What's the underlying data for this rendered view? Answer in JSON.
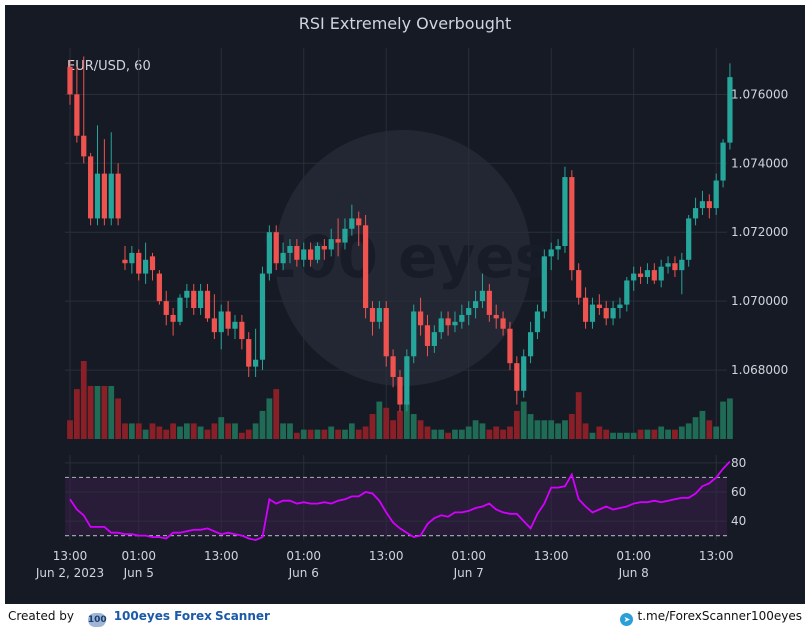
{
  "chart_data": [
    {
      "type": "candlestick",
      "title": "RSI Extremely Overbought",
      "symbol_label": "EUR/USD, 60",
      "ylim": [
        1.066,
        1.0772
      ],
      "y_ticks": [
        "1.068000",
        "1.070000",
        "1.072000",
        "1.074000",
        "1.076000"
      ],
      "y_tick_values": [
        1.068,
        1.07,
        1.072,
        1.074,
        1.076
      ],
      "x_ticks": [
        {
          "top": "13:00",
          "bottom": "Jun 2, 2023",
          "bar": 0
        },
        {
          "top": "01:00",
          "bottom": "Jun 5",
          "bar": 10
        },
        {
          "top": "13:00",
          "bottom": "",
          "bar": 22
        },
        {
          "top": "01:00",
          "bottom": "Jun 6",
          "bar": 34
        },
        {
          "top": "13:00",
          "bottom": "",
          "bar": 46
        },
        {
          "top": "01:00",
          "bottom": "Jun 7",
          "bar": 58
        },
        {
          "top": "13:00",
          "bottom": "",
          "bar": 70
        },
        {
          "top": "01:00",
          "bottom": "Jun 8",
          "bar": 82
        },
        {
          "top": "13:00",
          "bottom": "",
          "bar": 94
        }
      ],
      "bars": 97,
      "ohlc": [
        [
          1.0768,
          1.077,
          1.0757,
          1.076
        ],
        [
          1.076,
          1.0768,
          1.0746,
          1.0748
        ],
        [
          1.0748,
          1.0771,
          1.074,
          1.0742
        ],
        [
          1.0742,
          1.0743,
          1.0722,
          1.0724
        ],
        [
          1.0724,
          1.0751,
          1.0722,
          1.0737
        ],
        [
          1.0737,
          1.0747,
          1.0722,
          1.0724
        ],
        [
          1.0724,
          1.0749,
          1.0722,
          1.0737
        ],
        [
          1.0737,
          1.074,
          1.0722,
          1.0724
        ],
        [
          1.0712,
          1.0716,
          1.0709,
          1.0711
        ],
        [
          1.0711,
          1.0716,
          1.0708,
          1.0714
        ],
        [
          1.0714,
          1.0715,
          1.0706,
          1.0708
        ],
        [
          1.0708,
          1.0717,
          1.0705,
          1.0712
        ],
        [
          1.0713,
          1.0714,
          1.0706,
          1.0709
        ],
        [
          1.0708,
          1.0709,
          1.0699,
          1.07
        ],
        [
          1.07,
          1.0703,
          1.0693,
          1.0696
        ],
        [
          1.0696,
          1.0698,
          1.069,
          1.0694
        ],
        [
          1.0694,
          1.0702,
          1.0693,
          1.0701
        ],
        [
          1.0701,
          1.0705,
          1.0698,
          1.0703
        ],
        [
          1.0703,
          1.0705,
          1.0696,
          1.0698
        ],
        [
          1.0698,
          1.0705,
          1.0696,
          1.0703
        ],
        [
          1.0703,
          1.0705,
          1.0694,
          1.0695
        ],
        [
          1.0695,
          1.0702,
          1.0689,
          1.0691
        ],
        [
          1.0691,
          1.0699,
          1.0686,
          1.0697
        ],
        [
          1.0697,
          1.07,
          1.069,
          1.0692
        ],
        [
          1.0692,
          1.0696,
          1.0689,
          1.0694
        ],
        [
          1.0694,
          1.0696,
          1.0686,
          1.0689
        ],
        [
          1.0689,
          1.0691,
          1.0678,
          1.0681
        ],
        [
          1.0681,
          1.0692,
          1.0678,
          1.0683
        ],
        [
          1.0683,
          1.071,
          1.068,
          1.0708
        ],
        [
          1.0708,
          1.0722,
          1.0706,
          1.072
        ],
        [
          1.072,
          1.0722,
          1.0709,
          1.0711
        ],
        [
          1.0711,
          1.0717,
          1.0709,
          1.0714
        ],
        [
          1.0714,
          1.0718,
          1.0711,
          1.0716
        ],
        [
          1.0716,
          1.0718,
          1.071,
          1.0712
        ],
        [
          1.0712,
          1.0717,
          1.071,
          1.0715
        ],
        [
          1.0715,
          1.0717,
          1.071,
          1.0712
        ],
        [
          1.0712,
          1.0717,
          1.0711,
          1.0716
        ],
        [
          1.0716,
          1.0718,
          1.0712,
          1.0715
        ],
        [
          1.0715,
          1.0721,
          1.0713,
          1.0718
        ],
        [
          1.0718,
          1.0724,
          1.0713,
          1.0717
        ],
        [
          1.0717,
          1.0724,
          1.0715,
          1.0721
        ],
        [
          1.0721,
          1.0728,
          1.0719,
          1.0724
        ],
        [
          1.0724,
          1.0726,
          1.0716,
          1.0722
        ],
        [
          1.0722,
          1.0725,
          1.0695,
          1.0698
        ],
        [
          1.0698,
          1.07,
          1.069,
          1.0694
        ],
        [
          1.0694,
          1.07,
          1.0692,
          1.0698
        ],
        [
          1.0698,
          1.07,
          1.0681,
          1.0684
        ],
        [
          1.0684,
          1.0686,
          1.0675,
          1.0678
        ],
        [
          1.0678,
          1.068,
          1.0668,
          1.067
        ],
        [
          1.067,
          1.0686,
          1.0668,
          1.0684
        ],
        [
          1.0684,
          1.0699,
          1.0682,
          1.0697
        ],
        [
          1.0697,
          1.0701,
          1.069,
          1.0693
        ],
        [
          1.0693,
          1.0696,
          1.0684,
          1.0687
        ],
        [
          1.0687,
          1.0693,
          1.0685,
          1.0691
        ],
        [
          1.0691,
          1.0697,
          1.0689,
          1.0695
        ],
        [
          1.0695,
          1.0697,
          1.069,
          1.0693
        ],
        [
          1.0693,
          1.0697,
          1.0691,
          1.0694
        ],
        [
          1.0694,
          1.0699,
          1.0692,
          1.0696
        ],
        [
          1.0696,
          1.07,
          1.0693,
          1.0698
        ],
        [
          1.0698,
          1.0703,
          1.0695,
          1.07
        ],
        [
          1.07,
          1.0708,
          1.0698,
          1.0703
        ],
        [
          1.0703,
          1.0705,
          1.0694,
          1.0696
        ],
        [
          1.0696,
          1.0699,
          1.0692,
          1.0695
        ],
        [
          1.0695,
          1.0697,
          1.069,
          1.0692
        ],
        [
          1.0692,
          1.0694,
          1.068,
          1.0682
        ],
        [
          1.0682,
          1.0684,
          1.067,
          1.0674
        ],
        [
          1.0674,
          1.0686,
          1.0672,
          1.0684
        ],
        [
          1.0684,
          1.0694,
          1.0682,
          1.0691
        ],
        [
          1.0691,
          1.0699,
          1.0689,
          1.0697
        ],
        [
          1.0697,
          1.0715,
          1.0695,
          1.0713
        ],
        [
          1.0713,
          1.0717,
          1.0709,
          1.0715
        ],
        [
          1.0715,
          1.0718,
          1.0712,
          1.0716
        ],
        [
          1.0716,
          1.0739,
          1.0714,
          1.0736
        ],
        [
          1.0736,
          1.0738,
          1.0706,
          1.0709
        ],
        [
          1.0709,
          1.0711,
          1.0699,
          1.0701
        ],
        [
          1.0701,
          1.0704,
          1.0692,
          1.0694
        ],
        [
          1.0694,
          1.0701,
          1.0692,
          1.0699
        ],
        [
          1.0699,
          1.0702,
          1.0696,
          1.0698
        ],
        [
          1.0698,
          1.07,
          1.0693,
          1.0695
        ],
        [
          1.0695,
          1.07,
          1.0693,
          1.0698
        ],
        [
          1.0698,
          1.0701,
          1.0695,
          1.0699
        ],
        [
          1.0699,
          1.0707,
          1.0697,
          1.0706
        ],
        [
          1.0706,
          1.071,
          1.0703,
          1.0708
        ],
        [
          1.0708,
          1.071,
          1.0705,
          1.0707
        ],
        [
          1.0707,
          1.0711,
          1.0705,
          1.0709
        ],
        [
          1.0709,
          1.0711,
          1.0705,
          1.0706
        ],
        [
          1.0706,
          1.0712,
          1.0704,
          1.071
        ],
        [
          1.071,
          1.0713,
          1.0708,
          1.0711
        ],
        [
          1.0711,
          1.0713,
          1.0707,
          1.0709
        ],
        [
          1.0709,
          1.0714,
          1.0702,
          1.0712
        ],
        [
          1.0712,
          1.0725,
          1.071,
          1.0724
        ],
        [
          1.0724,
          1.073,
          1.0722,
          1.0727
        ],
        [
          1.0727,
          1.0732,
          1.0725,
          1.0729
        ],
        [
          1.0729,
          1.0731,
          1.0724,
          1.0727
        ],
        [
          1.0727,
          1.0737,
          1.0725,
          1.0735
        ],
        [
          1.0735,
          1.0747,
          1.0733,
          1.0746
        ],
        [
          1.0746,
          1.0769,
          1.0744,
          1.0765
        ]
      ],
      "volume": [
        6,
        16,
        25,
        17,
        17,
        17,
        17,
        13,
        5,
        5,
        5,
        3,
        5,
        4,
        3,
        5,
        4,
        5,
        5,
        4,
        3,
        5,
        7,
        5,
        5,
        2,
        3,
        5,
        9,
        13,
        16,
        5,
        5,
        2,
        3,
        3,
        3,
        3,
        4,
        3,
        3,
        5,
        3,
        4,
        8,
        12,
        10,
        6,
        9,
        12,
        8,
        6,
        4,
        3,
        3,
        2,
        3,
        3,
        4,
        6,
        5,
        3,
        4,
        3,
        4,
        9,
        12,
        8,
        6,
        6,
        6,
        5,
        6,
        8,
        15,
        5,
        2,
        4,
        3,
        2,
        2,
        2,
        2,
        3,
        3,
        3,
        4,
        3,
        3,
        4,
        5,
        7,
        9,
        6,
        4,
        12,
        13
      ]
    },
    {
      "type": "line",
      "name": "RSI",
      "ylim": [
        27,
        82
      ],
      "y_ticks": [
        "40",
        "60",
        "80"
      ],
      "y_tick_values": [
        40,
        60,
        80
      ],
      "overbought_level": 70,
      "oversold_level": 30,
      "values": [
        55,
        48,
        44,
        36,
        36,
        36,
        32,
        32,
        31,
        31,
        30,
        30,
        29,
        29,
        28,
        32,
        32,
        33,
        34,
        34,
        35,
        33,
        31,
        32,
        31,
        30,
        28,
        27,
        29,
        55,
        52,
        54,
        54,
        52,
        53,
        52,
        52,
        53,
        52,
        54,
        55,
        57,
        57,
        60,
        59,
        54,
        46,
        39,
        35,
        32,
        29,
        30,
        38,
        42,
        44,
        43,
        46,
        46,
        47,
        49,
        50,
        52,
        48,
        46,
        45,
        45,
        40,
        35,
        45,
        52,
        63,
        63,
        64,
        72,
        55,
        50,
        46,
        48,
        50,
        48,
        49,
        50,
        52,
        53,
        53,
        54,
        53,
        54,
        55,
        56,
        56,
        59,
        64,
        66,
        70,
        76,
        81
      ]
    }
  ],
  "watermark": "100 eyes",
  "footer": {
    "created_by": "Created by",
    "logo_text": "100",
    "brand": "100eyes",
    "brand_forex": "Forex",
    "brand_scanner": "Scanner",
    "telegram_icon": "telegram-icon",
    "telegram_link": "t.me/ForexScanner100eyes"
  },
  "colors": {
    "background": "#151a24",
    "bull": "#26a69a",
    "bear": "#ef5350",
    "bull_volume": "#1f6b55",
    "bear_volume": "#8a2027",
    "rsi_line": "#d400ff",
    "rsi_band": "#3a1f4a",
    "grid": "#2a2f3a",
    "text": "#d1d4dc"
  }
}
